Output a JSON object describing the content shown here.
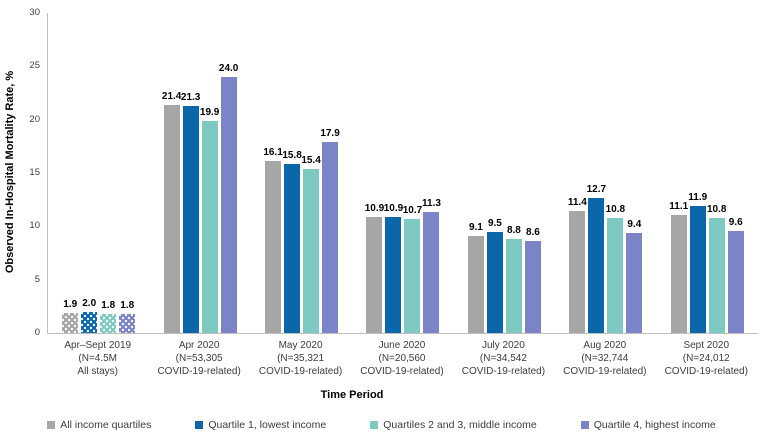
{
  "chart_data": {
    "type": "bar",
    "title": "",
    "ylabel": "Observed In-Hospital Mortality Rate, %",
    "xlabel": "Time Period",
    "ylim": [
      0,
      30
    ],
    "yticks": [
      0,
      5,
      10,
      15,
      20,
      25,
      30
    ],
    "grid": false,
    "legend_position": "bottom",
    "axis_color": "#bfbfbf",
    "value_label_decimals": 1,
    "categories": [
      {
        "lines": [
          "Apr–Sept 2019",
          "(N=4.5M",
          "All stays)"
        ],
        "dotted_pattern": true
      },
      {
        "lines": [
          "Apr 2020",
          "(N=53,305",
          "COVID-19-related)"
        ],
        "dotted_pattern": false
      },
      {
        "lines": [
          "May 2020",
          "(N=35,321",
          "COVID-19-related)"
        ],
        "dotted_pattern": false
      },
      {
        "lines": [
          "June 2020",
          "(N=20,560",
          "COVID-19-related)"
        ],
        "dotted_pattern": false
      },
      {
        "lines": [
          "July 2020",
          "(N=34,542",
          "COVID-19-related)"
        ],
        "dotted_pattern": false
      },
      {
        "lines": [
          "Aug 2020",
          "(N=32,744",
          "COVID-19-related)"
        ],
        "dotted_pattern": false
      },
      {
        "lines": [
          "Sept 2020",
          "(N=24,012",
          "COVID-19-related)"
        ],
        "dotted_pattern": false
      }
    ],
    "series": [
      {
        "name": "All income quartiles",
        "color": "#a6a6a6",
        "values": [
          1.9,
          21.4,
          16.1,
          10.9,
          9.1,
          11.4,
          11.1
        ]
      },
      {
        "name": "Quartile 1, lowest income",
        "color": "#0b67a9",
        "values": [
          2.0,
          21.3,
          15.8,
          10.9,
          9.5,
          12.7,
          11.9
        ]
      },
      {
        "name": "Quartiles 2 and 3, middle income",
        "color": "#7ecac2",
        "values": [
          1.8,
          19.9,
          15.4,
          10.7,
          8.8,
          10.8,
          10.8
        ]
      },
      {
        "name": "Quartile 4, highest income",
        "color": "#7c84c8",
        "values": [
          1.8,
          24.0,
          17.9,
          11.3,
          8.6,
          9.4,
          9.6
        ]
      }
    ]
  }
}
